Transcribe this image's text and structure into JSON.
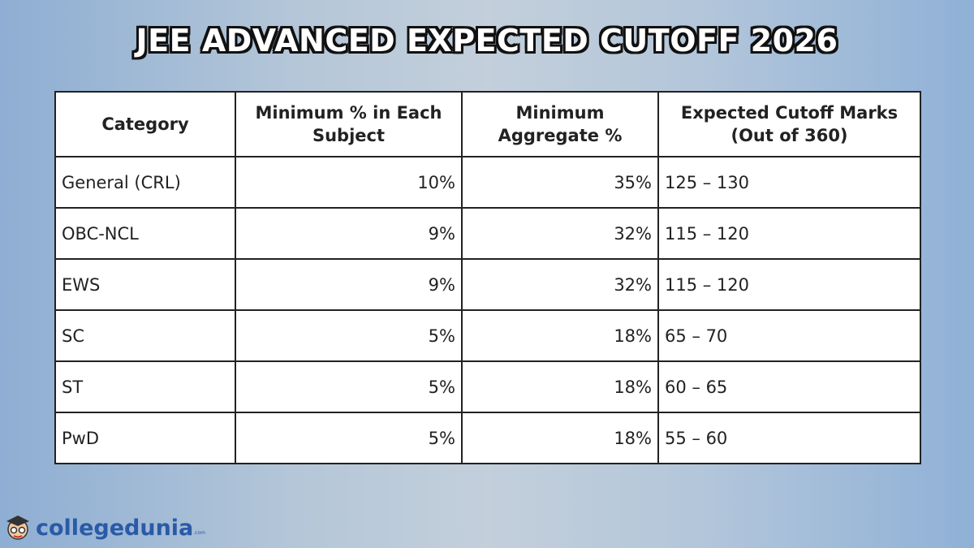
{
  "title": "JEE ADVANCED EXPECTED CUTOFF 2026",
  "table": {
    "header": [
      "Category",
      "Minimum % in Each Subject",
      "Minimum Aggregate %",
      "Expected Cutoff Marks (Out of 360)"
    ],
    "rows": [
      [
        "General (CRL)",
        "10%",
        "35%",
        "125 – 130"
      ],
      [
        "OBC-NCL",
        "9%",
        "32%",
        "115 – 120"
      ],
      [
        "EWS",
        "9%",
        "32%",
        "115 – 120"
      ],
      [
        "SC",
        "5%",
        "18%",
        "65 – 70"
      ],
      [
        "ST",
        "5%",
        "18%",
        "60 – 65"
      ],
      [
        "PwD",
        "5%",
        "18%",
        "55 – 60"
      ]
    ]
  },
  "logo": {
    "name": "collegedunia",
    "suffix": ".com"
  }
}
